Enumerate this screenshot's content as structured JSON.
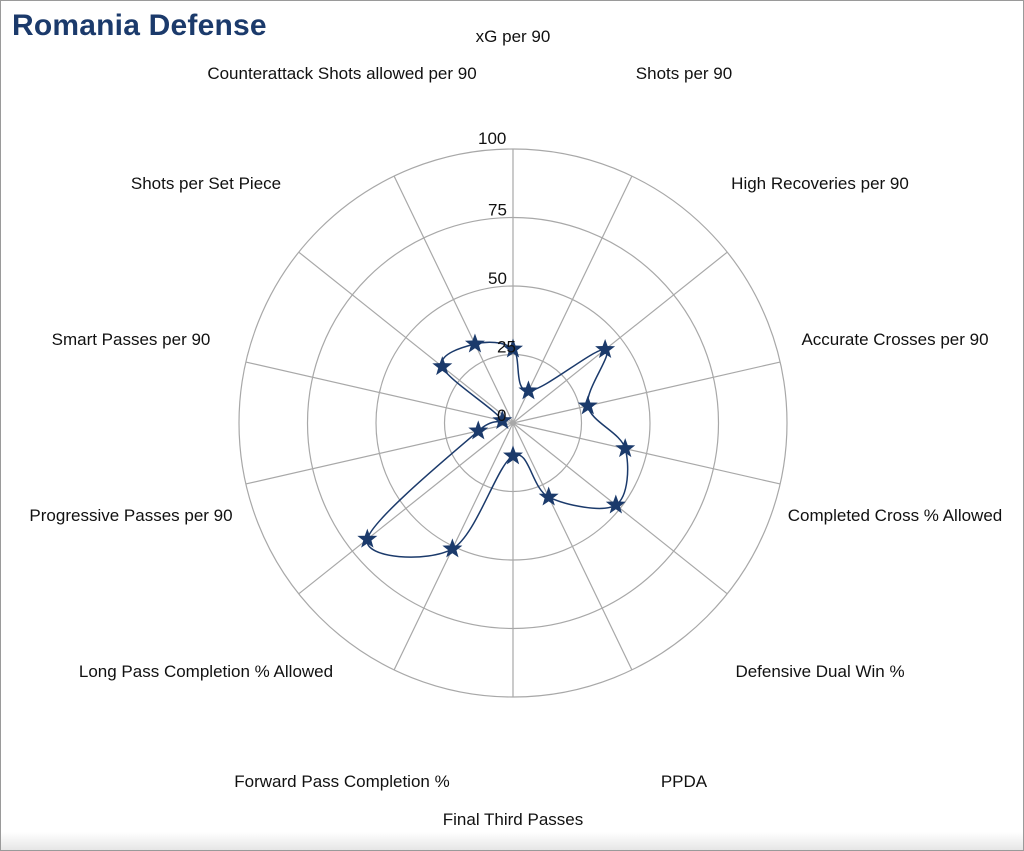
{
  "title": "Romania Defense",
  "colors": {
    "title": "#1b3a6b",
    "series": "#1b3a6b",
    "grid": "#a8a8a8",
    "text": "#111111"
  },
  "chart_data": {
    "type": "radar",
    "title": "Romania Defense",
    "rmin": 0,
    "rmax": 100,
    "radial_ticks": [
      "0",
      "25",
      "50",
      "75",
      "100"
    ],
    "grid": true,
    "marker": "star",
    "categories": [
      "xG per 90",
      "Shots per 90",
      "High Recoveries per 90",
      "Accurate Crosses per 90",
      "Completed Cross % Allowed",
      "Defensive Dual Win %",
      "PPDA",
      "Final Third Passes",
      "Forward Pass Completion %",
      "Long Pass Completion % Allowed",
      "Progressive Passes per 90",
      "Smart Passes per 90",
      "Shots per Set Piece",
      "Counterattack Shots allowed per 90"
    ],
    "series": [
      {
        "values": [
          27,
          13,
          43,
          28,
          42,
          48,
          30,
          12,
          51,
          68,
          13,
          4,
          33,
          32
        ]
      }
    ]
  }
}
